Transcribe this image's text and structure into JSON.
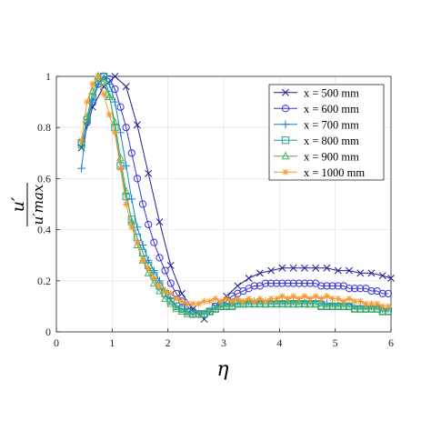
{
  "chart_data": {
    "type": "line",
    "title": "",
    "xlabel": "η",
    "ylabel": {
      "numerator": "u′",
      "denominator": "u′max"
    },
    "xlim": [
      0,
      6
    ],
    "ylim": [
      0,
      1
    ],
    "x_ticks": [
      "0",
      "1",
      "2",
      "3",
      "4",
      "5",
      "6"
    ],
    "y_ticks": [
      "0",
      "0.2",
      "0.4",
      "0.6",
      "0.8",
      "1"
    ],
    "grid": true,
    "legend_position": "top-right",
    "series": [
      {
        "name": "x = 500 mm",
        "color": "#1f1f8f",
        "marker": "x",
        "x": [
          0.45,
          0.65,
          0.85,
          1.05,
          1.25,
          1.45,
          1.65,
          1.85,
          2.05,
          2.25,
          2.45,
          2.65,
          2.85,
          3.05,
          3.25,
          3.45,
          3.65,
          3.85,
          4.05,
          4.25,
          4.45,
          4.65,
          4.85,
          5.05,
          5.25,
          5.45,
          5.65,
          5.85,
          6.0
        ],
        "y": [
          0.72,
          0.88,
          0.96,
          1.0,
          0.96,
          0.81,
          0.62,
          0.43,
          0.26,
          0.15,
          0.09,
          0.05,
          0.1,
          0.14,
          0.18,
          0.21,
          0.23,
          0.24,
          0.25,
          0.25,
          0.25,
          0.25,
          0.25,
          0.24,
          0.24,
          0.23,
          0.23,
          0.22,
          0.21
        ]
      },
      {
        "name": "x = 600 mm",
        "color": "#3535d6",
        "marker": "o",
        "x": [
          0.45,
          0.55,
          0.65,
          0.75,
          0.85,
          0.95,
          1.05,
          1.15,
          1.25,
          1.35,
          1.45,
          1.55,
          1.65,
          1.75,
          1.85,
          1.95,
          2.05,
          2.15,
          2.25,
          2.35,
          2.45,
          2.55,
          2.65,
          2.75,
          2.85,
          2.95,
          3.05,
          3.15,
          3.25,
          3.35,
          3.45,
          3.55,
          3.65,
          3.75,
          3.85,
          3.95,
          4.05,
          4.15,
          4.25,
          4.35,
          4.45,
          4.55,
          4.65,
          4.75,
          4.85,
          4.95,
          5.05,
          5.15,
          5.25,
          5.35,
          5.45,
          5.55,
          5.65,
          5.75,
          5.85,
          5.95
        ],
        "y": [
          0.74,
          0.82,
          0.9,
          0.97,
          1.0,
          0.99,
          0.95,
          0.88,
          0.8,
          0.7,
          0.6,
          0.5,
          0.42,
          0.35,
          0.29,
          0.24,
          0.19,
          0.15,
          0.12,
          0.1,
          0.08,
          0.07,
          0.07,
          0.08,
          0.1,
          0.11,
          0.12,
          0.14,
          0.15,
          0.16,
          0.17,
          0.18,
          0.18,
          0.19,
          0.19,
          0.19,
          0.19,
          0.19,
          0.19,
          0.19,
          0.19,
          0.19,
          0.19,
          0.18,
          0.18,
          0.18,
          0.18,
          0.18,
          0.17,
          0.17,
          0.17,
          0.17,
          0.16,
          0.16,
          0.15,
          0.15
        ]
      },
      {
        "name": "x = 700 mm",
        "color": "#1a7fd6",
        "marker": "+",
        "x": [
          0.45,
          0.55,
          0.65,
          0.75,
          0.85,
          0.95,
          1.05,
          1.15,
          1.25,
          1.35,
          1.45,
          1.55,
          1.65,
          1.75,
          1.85,
          1.95,
          2.05,
          2.15,
          2.25,
          2.35,
          2.45,
          2.55,
          2.65,
          2.75,
          2.85,
          2.95,
          3.05,
          3.15,
          3.25,
          3.35,
          3.45,
          3.55,
          3.65,
          3.75,
          3.85,
          3.95,
          4.05,
          4.15,
          4.25,
          4.35,
          4.45,
          4.55,
          4.65,
          4.75,
          4.85,
          4.95,
          5.05,
          5.15,
          5.25,
          5.35,
          5.45,
          5.55,
          5.65,
          5.75,
          5.85,
          5.95
        ],
        "y": [
          0.64,
          0.82,
          0.9,
          0.97,
          1.0,
          0.97,
          0.9,
          0.78,
          0.65,
          0.52,
          0.41,
          0.34,
          0.28,
          0.24,
          0.2,
          0.16,
          0.13,
          0.1,
          0.09,
          0.08,
          0.07,
          0.07,
          0.07,
          0.08,
          0.09,
          0.1,
          0.1,
          0.11,
          0.11,
          0.11,
          0.12,
          0.12,
          0.12,
          0.12,
          0.12,
          0.12,
          0.12,
          0.12,
          0.12,
          0.12,
          0.12,
          0.12,
          0.12,
          0.12,
          0.11,
          0.11,
          0.11,
          0.11,
          0.11,
          0.1,
          0.1,
          0.1,
          0.1,
          0.1,
          0.09,
          0.09
        ]
      },
      {
        "name": "x = 800 mm",
        "color": "#1a9e9e",
        "marker": "s",
        "x": [
          0.45,
          0.55,
          0.65,
          0.75,
          0.85,
          0.95,
          1.05,
          1.15,
          1.25,
          1.35,
          1.45,
          1.55,
          1.65,
          1.75,
          1.85,
          1.95,
          2.05,
          2.15,
          2.25,
          2.35,
          2.45,
          2.55,
          2.65,
          2.75,
          2.85,
          2.95,
          3.05,
          3.15,
          3.25,
          3.35,
          3.45,
          3.55,
          3.65,
          3.75,
          3.85,
          3.95,
          4.05,
          4.15,
          4.25,
          4.35,
          4.45,
          4.55,
          4.65,
          4.75,
          4.85,
          4.95,
          5.05,
          5.15,
          5.25,
          5.35,
          5.45,
          5.55,
          5.65,
          5.75,
          5.85,
          5.95
        ],
        "y": [
          0.74,
          0.83,
          0.92,
          0.98,
          1.0,
          0.93,
          0.8,
          0.65,
          0.53,
          0.44,
          0.37,
          0.31,
          0.26,
          0.22,
          0.18,
          0.15,
          0.12,
          0.1,
          0.09,
          0.08,
          0.07,
          0.07,
          0.07,
          0.08,
          0.09,
          0.1,
          0.1,
          0.1,
          0.11,
          0.11,
          0.11,
          0.11,
          0.11,
          0.11,
          0.11,
          0.11,
          0.11,
          0.11,
          0.11,
          0.11,
          0.11,
          0.11,
          0.11,
          0.1,
          0.1,
          0.1,
          0.1,
          0.1,
          0.1,
          0.09,
          0.09,
          0.09,
          0.09,
          0.09,
          0.08,
          0.08
        ]
      },
      {
        "name": "x = 900 mm",
        "color": "#4fb05a",
        "marker": "^",
        "x": [
          0.45,
          0.55,
          0.65,
          0.75,
          0.85,
          0.95,
          1.05,
          1.15,
          1.25,
          1.35,
          1.45,
          1.55,
          1.65,
          1.75,
          1.85,
          1.95,
          2.05,
          2.15,
          2.25,
          2.35,
          2.45,
          2.55,
          2.65,
          2.75,
          2.85,
          2.95,
          3.05,
          3.15,
          3.25,
          3.35,
          3.45,
          3.55,
          3.65,
          3.75,
          3.85,
          3.95,
          4.05,
          4.15,
          4.25,
          4.35,
          4.45,
          4.55,
          4.65,
          4.75,
          4.85,
          4.95,
          5.05,
          5.15,
          5.25,
          5.35,
          5.45,
          5.55,
          5.65,
          5.75,
          5.85,
          5.95
        ],
        "y": [
          0.73,
          0.84,
          0.94,
          1.0,
          0.98,
          0.92,
          0.82,
          0.68,
          0.55,
          0.43,
          0.34,
          0.28,
          0.23,
          0.19,
          0.16,
          0.13,
          0.11,
          0.09,
          0.08,
          0.07,
          0.07,
          0.07,
          0.07,
          0.08,
          0.09,
          0.1,
          0.1,
          0.1,
          0.11,
          0.11,
          0.11,
          0.11,
          0.11,
          0.11,
          0.11,
          0.11,
          0.11,
          0.11,
          0.11,
          0.11,
          0.11,
          0.11,
          0.11,
          0.1,
          0.1,
          0.1,
          0.1,
          0.1,
          0.1,
          0.09,
          0.09,
          0.09,
          0.09,
          0.09,
          0.08,
          0.08
        ]
      },
      {
        "name": "x = 1000 mm",
        "color": "#f39a2c",
        "marker": "*",
        "x": [
          0.45,
          0.55,
          0.65,
          0.75,
          0.85,
          0.95,
          1.05,
          1.15,
          1.25,
          1.35,
          1.45,
          1.55,
          1.65,
          1.75,
          1.85,
          1.95,
          2.05,
          2.15,
          2.25,
          2.35,
          2.45,
          2.55,
          2.65,
          2.75,
          2.85,
          2.95,
          3.05,
          3.15,
          3.25,
          3.35,
          3.45,
          3.55,
          3.65,
          3.75,
          3.85,
          3.95,
          4.05,
          4.15,
          4.25,
          4.35,
          4.45,
          4.55,
          4.65,
          4.75,
          4.85,
          4.95,
          5.05,
          5.15,
          5.25,
          5.35,
          5.45,
          5.55,
          5.65,
          5.75,
          5.85,
          5.95
        ],
        "y": [
          0.75,
          0.9,
          0.97,
          1.0,
          0.93,
          0.85,
          0.78,
          0.64,
          0.5,
          0.41,
          0.35,
          0.28,
          0.25,
          0.21,
          0.18,
          0.16,
          0.15,
          0.13,
          0.12,
          0.11,
          0.11,
          0.11,
          0.12,
          0.12,
          0.13,
          0.12,
          0.13,
          0.12,
          0.13,
          0.12,
          0.13,
          0.12,
          0.13,
          0.12,
          0.13,
          0.13,
          0.14,
          0.13,
          0.14,
          0.13,
          0.14,
          0.13,
          0.14,
          0.13,
          0.14,
          0.13,
          0.13,
          0.12,
          0.13,
          0.12,
          0.12,
          0.11,
          0.11,
          0.11,
          0.1,
          0.1
        ]
      }
    ]
  }
}
